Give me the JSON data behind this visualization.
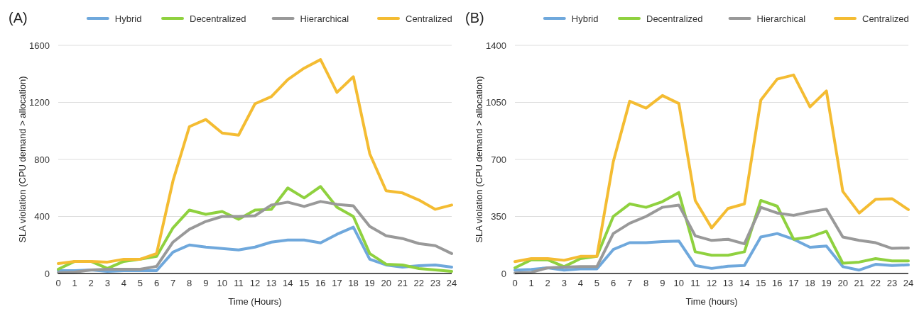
{
  "chart_data": [
    {
      "type": "line",
      "title": "(A)",
      "xlabel": "Time (Hours)",
      "ylabel": "SLA violation (CPU demand > allocation)",
      "x": [
        0,
        1,
        2,
        3,
        4,
        5,
        6,
        7,
        8,
        9,
        10,
        11,
        12,
        13,
        14,
        15,
        16,
        17,
        18,
        19,
        20,
        21,
        22,
        23,
        24
      ],
      "xlim": [
        0,
        24
      ],
      "xticks": [
        0,
        1,
        2,
        3,
        4,
        5,
        6,
        7,
        8,
        9,
        10,
        11,
        12,
        13,
        14,
        15,
        16,
        17,
        18,
        19,
        20,
        21,
        22,
        23,
        24
      ],
      "ylim": [
        0,
        1600
      ],
      "yticks": [
        0,
        400,
        800,
        1200,
        1600
      ],
      "grid": "y",
      "legend": "top",
      "marker": "none",
      "line_style": "solid",
      "series": [
        {
          "name": "Hybrid",
          "color": "#6fa8dc",
          "values": [
            20,
            20,
            25,
            15,
            20,
            20,
            20,
            150,
            200,
            185,
            175,
            165,
            185,
            220,
            235,
            235,
            215,
            275,
            325,
            100,
            60,
            45,
            55,
            60,
            45
          ]
        },
        {
          "name": "Decentralized",
          "color": "#8fd13f",
          "values": [
            30,
            85,
            85,
            35,
            85,
            100,
            120,
            320,
            445,
            415,
            435,
            380,
            445,
            450,
            600,
            530,
            610,
            465,
            400,
            140,
            65,
            60,
            35,
            25,
            15
          ]
        },
        {
          "name": "Hierarchical",
          "color": "#999999",
          "values": [
            5,
            10,
            25,
            30,
            30,
            30,
            50,
            220,
            310,
            365,
            400,
            400,
            405,
            480,
            500,
            470,
            505,
            485,
            475,
            330,
            265,
            245,
            210,
            195,
            140
          ]
        },
        {
          "name": "Centralized",
          "color": "#f4bc32",
          "values": [
            70,
            85,
            85,
            80,
            100,
            100,
            140,
            650,
            1030,
            1080,
            985,
            970,
            1190,
            1240,
            1360,
            1440,
            1500,
            1270,
            1380,
            840,
            580,
            565,
            515,
            450,
            480
          ]
        }
      ]
    },
    {
      "type": "line",
      "title": "(B)",
      "xlabel": "Time (hours)",
      "ylabel": "SLA violation (CPU demand > allocation)",
      "x": [
        0,
        1,
        2,
        3,
        4,
        5,
        6,
        7,
        8,
        9,
        10,
        11,
        12,
        13,
        14,
        15,
        16,
        17,
        18,
        19,
        20,
        21,
        22,
        23,
        24
      ],
      "xlim": [
        0,
        24
      ],
      "xticks": [
        0,
        1,
        2,
        3,
        4,
        5,
        6,
        7,
        8,
        9,
        10,
        11,
        12,
        13,
        14,
        15,
        16,
        17,
        18,
        19,
        20,
        21,
        22,
        23,
        24
      ],
      "ylim": [
        0,
        1400
      ],
      "yticks": [
        0,
        350,
        700,
        1050,
        1400
      ],
      "grid": "y",
      "legend": "top",
      "marker": "none",
      "line_style": "solid",
      "series": [
        {
          "name": "Hybrid",
          "color": "#6fa8dc",
          "values": [
            21,
            25,
            35,
            21,
            28,
            28,
            147,
            189,
            189,
            196,
            199,
            49,
            31,
            45,
            49,
            224,
            245,
            210,
            161,
            168,
            42,
            21,
            56,
            49,
            53
          ]
        },
        {
          "name": "Decentralized",
          "color": "#8fd13f",
          "values": [
            35,
            84,
            84,
            42,
            91,
            105,
            350,
            427,
            406,
            441,
            497,
            133,
            112,
            112,
            133,
            448,
            413,
            210,
            224,
            259,
            63,
            70,
            91,
            77,
            77
          ]
        },
        {
          "name": "Hierarchical",
          "color": "#999999",
          "values": [
            3,
            7,
            35,
            39,
            42,
            42,
            245,
            308,
            350,
            406,
            420,
            231,
            203,
            210,
            182,
            406,
            371,
            357,
            378,
            395,
            224,
            203,
            189,
            154,
            157
          ]
        },
        {
          "name": "Centralized",
          "color": "#f4bc32",
          "values": [
            73,
            91,
            91,
            81,
            105,
            105,
            686,
            1057,
            1015,
            1092,
            1043,
            448,
            280,
            399,
            427,
            1064,
            1193,
            1218,
            1022,
            1120,
            504,
            371,
            455,
            459,
            392
          ]
        }
      ]
    }
  ]
}
